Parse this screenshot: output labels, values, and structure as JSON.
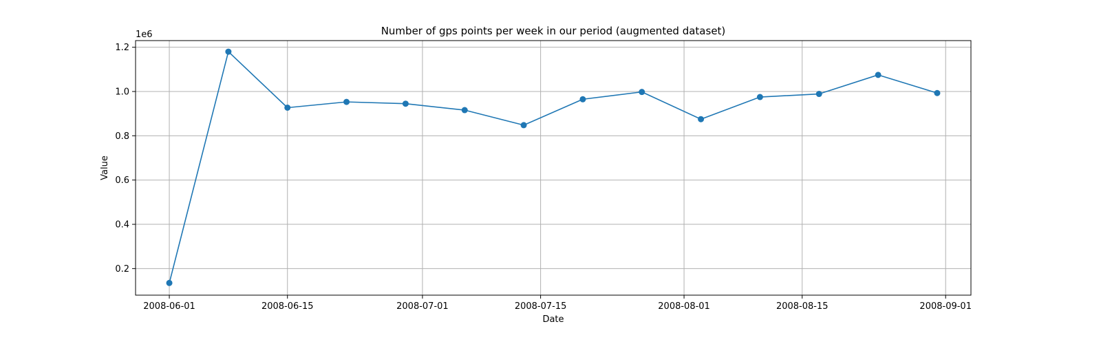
{
  "chart_data": {
    "type": "line",
    "title": "Number of gps points per week in our period (augmented dataset)",
    "xlabel": "Date",
    "ylabel": "Value",
    "y_offset_label": "1e6",
    "y_multiplier": 1000000,
    "grid": true,
    "marker": "circle",
    "x_dates": [
      "2008-06-01",
      "2008-06-08",
      "2008-06-15",
      "2008-06-22",
      "2008-06-29",
      "2008-07-06",
      "2008-07-13",
      "2008-07-20",
      "2008-07-27",
      "2008-08-03",
      "2008-08-10",
      "2008-08-17",
      "2008-08-24",
      "2008-08-31"
    ],
    "values": [
      135000,
      1180000,
      927000,
      953000,
      945000,
      916000,
      848000,
      965000,
      998000,
      875000,
      975000,
      989000,
      1075000,
      993000
    ],
    "xlim": [
      "2008-05-28",
      "2008-09-04"
    ],
    "ylim": [
      0.08,
      1.23
    ],
    "x_ticks": [
      "2008-06-01",
      "2008-06-15",
      "2008-07-01",
      "2008-07-15",
      "2008-08-01",
      "2008-08-15",
      "2008-09-01"
    ],
    "y_ticks": [
      0.2,
      0.4,
      0.6,
      0.8,
      1.0,
      1.2
    ],
    "y_tick_labels": [
      "0.2",
      "0.4",
      "0.6",
      "0.8",
      "1.0",
      "1.2"
    ],
    "colors": {
      "series": "#1f77b4",
      "grid": "#b0b0b0",
      "axes": "#000000"
    }
  }
}
